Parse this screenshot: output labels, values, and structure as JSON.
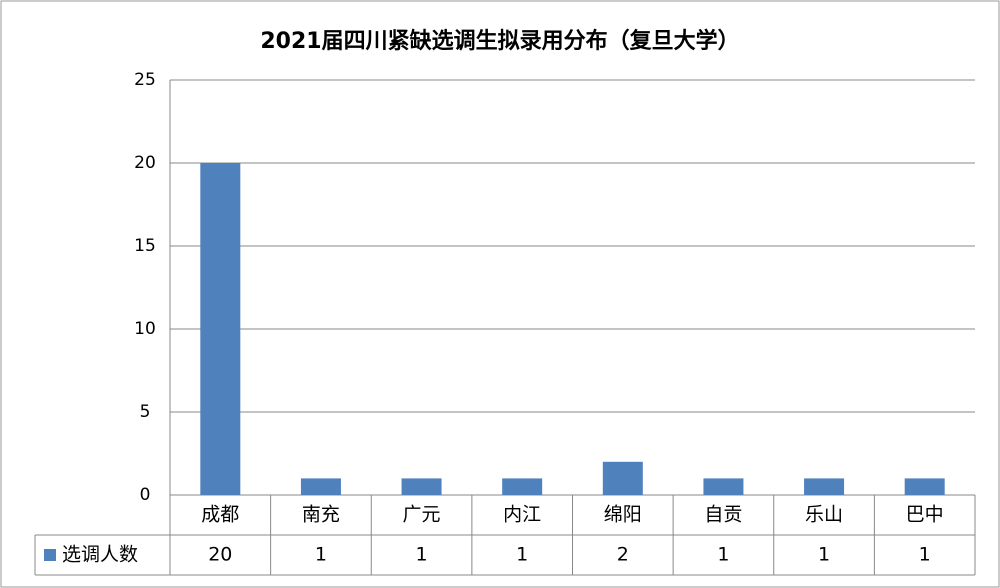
{
  "chart_data": {
    "type": "bar",
    "title": "2021届四川紧缺选调生拟录用分布（复旦大学）",
    "categories": [
      "成都",
      "南充",
      "广元",
      "内江",
      "绵阳",
      "自贡",
      "乐山",
      "巴中"
    ],
    "series": [
      {
        "name": "选调人数",
        "color": "#4f81bd",
        "values": [
          20,
          1,
          1,
          1,
          2,
          1,
          1,
          1
        ]
      }
    ],
    "ylim": [
      0,
      25
    ],
    "yticks": [
      0,
      5,
      10,
      15,
      20,
      25
    ],
    "grid": true
  }
}
